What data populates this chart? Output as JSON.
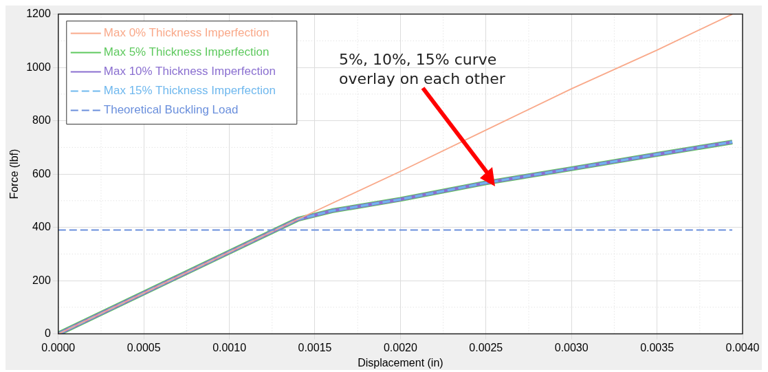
{
  "chart_data": {
    "type": "line",
    "xlabel": "Displacement (in)",
    "ylabel": "Force (lbf)",
    "xlim": [
      0,
      0.004
    ],
    "xticks": [
      {
        "value": 0,
        "label": "0.0000"
      },
      {
        "value": 0.0005,
        "label": "0.0005"
      },
      {
        "value": 0.001,
        "label": "0.0010"
      },
      {
        "value": 0.0015,
        "label": "0.0015"
      },
      {
        "value": 0.002,
        "label": "0.0020"
      },
      {
        "value": 0.0025,
        "label": "0.0025"
      },
      {
        "value": 0.003,
        "label": "0.0030"
      },
      {
        "value": 0.0035,
        "label": "0.0035"
      },
      {
        "value": 0.004,
        "label": "0.0040"
      }
    ],
    "ylim": [
      0,
      1200
    ],
    "yticks": [
      0,
      200,
      400,
      600,
      800,
      1000,
      1200
    ],
    "grid": true,
    "legend": "top left",
    "marker": "none",
    "series": [
      {
        "name": "Max 0% Thickness Imperfection",
        "color": "#f9a98a",
        "x": [
          0,
          0.0014,
          0.002,
          0.0025,
          0.003,
          0.0035,
          0.00394
        ],
        "values": [
          0,
          430,
          610,
          765,
          920,
          1065,
          1200
        ]
      },
      {
        "name": "Max 5% Thickness Imperfection",
        "color": "#5ec95e",
        "x": [
          0,
          0.0014,
          0.0016,
          0.002,
          0.0025,
          0.003,
          0.0035,
          0.00394
        ],
        "values": [
          0,
          430,
          462,
          505,
          567,
          620,
          674,
          720
        ]
      },
      {
        "name": "Max 10% Thickness Imperfection",
        "color": "#8a6fd0",
        "x": [
          0,
          0.0014,
          0.0016,
          0.002,
          0.0025,
          0.003,
          0.0035,
          0.00394
        ],
        "values": [
          0,
          430,
          462,
          505,
          567,
          620,
          674,
          720
        ]
      },
      {
        "name": "Max 15% Thickness Imperfection",
        "color": "#6fb8ee",
        "line_style": "dashed",
        "x": [
          0,
          0.0014,
          0.0016,
          0.002,
          0.0025,
          0.003,
          0.0035,
          0.00394
        ],
        "values": [
          0,
          430,
          462,
          505,
          567,
          620,
          674,
          720
        ]
      },
      {
        "name": "Theoretical Buckling Load",
        "color": "#6a8fdc",
        "line_style": "dashed",
        "x": [
          0,
          0.00394
        ],
        "values": [
          390,
          390
        ]
      }
    ],
    "annotations": [
      "5%, 10%, 15% curve\noverlay on each other"
    ]
  }
}
